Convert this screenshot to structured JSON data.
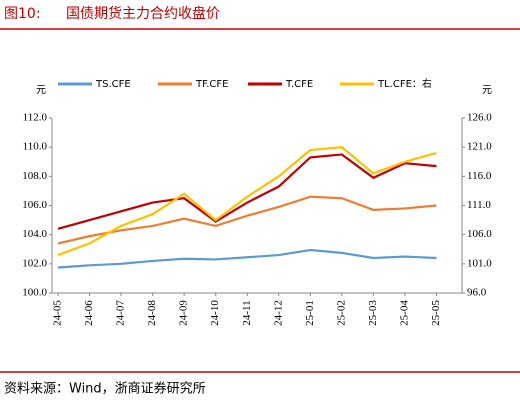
{
  "header": {
    "figure": "图10:",
    "title": "国债期货主力合约收盘价"
  },
  "chart_data": {
    "type": "line",
    "y_unit": "元",
    "y2_unit": "元",
    "x": [
      "24-05",
      "24-06",
      "24-07",
      "24-08",
      "24-09",
      "24-10",
      "24-11",
      "24-12",
      "25-01",
      "25-02",
      "25-03",
      "25-04",
      "25-05"
    ],
    "series": [
      {
        "name": "TS.CFE",
        "color": "#5b9bd5",
        "values": [
          101.75,
          101.9,
          102.0,
          102.2,
          102.35,
          102.3,
          102.45,
          102.6,
          102.95,
          102.75,
          102.4,
          102.5,
          102.4
        ]
      },
      {
        "name": "TF.CFE",
        "color": "#ed7d31",
        "values": [
          103.4,
          103.9,
          104.3,
          104.6,
          105.1,
          104.6,
          105.3,
          105.9,
          106.6,
          106.5,
          105.7,
          105.8,
          106.0
        ]
      },
      {
        "name": "T.CFE",
        "color": "#c00000",
        "values": [
          104.4,
          105.0,
          105.6,
          106.2,
          106.5,
          104.9,
          106.2,
          107.3,
          109.3,
          109.5,
          107.9,
          108.9,
          108.7
        ]
      },
      {
        "name": "TL.CFE：右",
        "color": "#ffc000",
        "axis": "y2",
        "values": [
          102.5,
          104.5,
          107.5,
          109.5,
          113,
          108.5,
          112.5,
          116,
          120.5,
          121,
          116.5,
          118.5,
          120
        ]
      }
    ],
    "ylim": [
      100,
      112
    ],
    "yticks": [
      {
        "value": 100,
        "label": "100.0"
      },
      {
        "value": 102,
        "label": "102.0"
      },
      {
        "value": 104,
        "label": "104.0"
      },
      {
        "value": 106,
        "label": "106.0"
      },
      {
        "value": 108,
        "label": "108.0"
      },
      {
        "value": 110,
        "label": "110.0"
      },
      {
        "value": 112,
        "label": "112.0"
      }
    ],
    "y2lim": [
      96,
      126
    ],
    "y2ticks": [
      {
        "value": 96,
        "label": "96.0"
      },
      {
        "value": 101,
        "label": "101.0"
      },
      {
        "value": 106,
        "label": "106.0"
      },
      {
        "value": 111,
        "label": "111.0"
      },
      {
        "value": 116,
        "label": "116.0"
      },
      {
        "value": 121,
        "label": "121.0"
      },
      {
        "value": 126,
        "label": "126.0"
      }
    ],
    "grid": false
  },
  "footer": {
    "source": "资料来源：Wind，浙商证券研究所"
  }
}
